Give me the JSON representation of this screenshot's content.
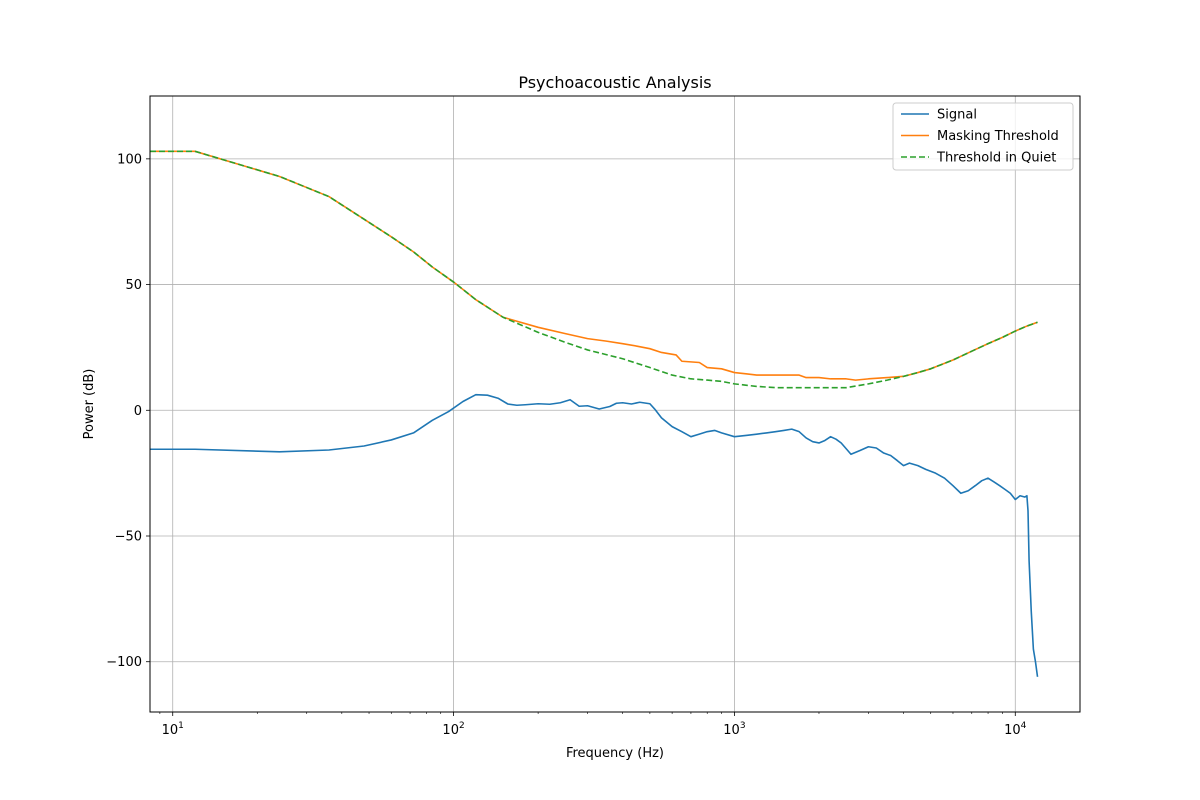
{
  "chart_data": {
    "type": "line",
    "title": "Psychoacoustic Analysis",
    "xlabel": "Frequency (Hz)",
    "ylabel": "Power (dB)",
    "xscale": "log",
    "xlim": [
      8.3,
      17000
    ],
    "ylim": [
      -120,
      125
    ],
    "grid": true,
    "legend_placement": "top-right",
    "x_ticks": [
      {
        "value": 10,
        "base": "10",
        "exp": "1"
      },
      {
        "value": 100,
        "base": "10",
        "exp": "2"
      },
      {
        "value": 1000,
        "base": "10",
        "exp": "3"
      },
      {
        "value": 10000,
        "base": "10",
        "exp": "4"
      }
    ],
    "y_ticks": [
      {
        "value": -100,
        "label": "−100"
      },
      {
        "value": -50,
        "label": "−50"
      },
      {
        "value": 0,
        "label": "0"
      },
      {
        "value": 50,
        "label": "50"
      },
      {
        "value": 100,
        "label": "100"
      }
    ],
    "series": [
      {
        "name": "Signal",
        "color": "#1f77b4",
        "style": "solid",
        "x": [
          8.3,
          12,
          24,
          36,
          48,
          60,
          72,
          84,
          96,
          108,
          120,
          132,
          144,
          156,
          168,
          180,
          200,
          220,
          240,
          260,
          280,
          300,
          330,
          360,
          380,
          400,
          430,
          460,
          500,
          520,
          550,
          600,
          650,
          700,
          750,
          800,
          850,
          900,
          1000,
          1100,
          1200,
          1300,
          1400,
          1500,
          1600,
          1700,
          1800,
          1900,
          2000,
          2100,
          2200,
          2300,
          2400,
          2600,
          2800,
          3000,
          3200,
          3400,
          3600,
          3800,
          4000,
          4200,
          4500,
          4800,
          5200,
          5600,
          6000,
          6400,
          6800,
          7200,
          7600,
          8000,
          8400,
          8800,
          9200,
          9600,
          10000,
          10400,
          10800,
          11000,
          11100,
          11200,
          11400,
          11600,
          11800,
          12000
        ],
        "y": [
          -15.5,
          -15.5,
          -16.5,
          -15.8,
          -14.2,
          -11.8,
          -9.0,
          -4.0,
          -0.5,
          3.5,
          6.2,
          6.0,
          4.8,
          2.5,
          2.0,
          2.2,
          2.6,
          2.4,
          3.0,
          4.2,
          1.6,
          1.8,
          0.5,
          1.5,
          2.8,
          3.0,
          2.5,
          3.2,
          2.6,
          0.5,
          -3.0,
          -6.5,
          -8.5,
          -10.5,
          -9.5,
          -8.5,
          -8.0,
          -9.0,
          -10.5,
          -10.0,
          -9.5,
          -9.0,
          -8.5,
          -8.0,
          -7.5,
          -8.5,
          -11.0,
          -12.5,
          -13.0,
          -12.0,
          -10.5,
          -11.5,
          -13.0,
          -17.5,
          -16.0,
          -14.5,
          -15.0,
          -17.0,
          -18.0,
          -20.0,
          -22.0,
          -21.0,
          -22.0,
          -23.5,
          -25.0,
          -27.0,
          -30.0,
          -33.0,
          -32.0,
          -30.0,
          -28.0,
          -27.0,
          -28.5,
          -30.0,
          -31.5,
          -33.0,
          -35.5,
          -34.0,
          -34.5,
          -34.0,
          -40.0,
          -60.0,
          -80.0,
          -95.0,
          -100.0,
          -106.0
        ]
      },
      {
        "name": "Masking Threshold",
        "color": "#ff7f0e",
        "style": "solid",
        "x": [
          8.3,
          12,
          24,
          36,
          48,
          60,
          72,
          84,
          100,
          120,
          150,
          200,
          250,
          300,
          350,
          400,
          450,
          500,
          550,
          620,
          650,
          750,
          800,
          900,
          1000,
          1100,
          1200,
          1300,
          1500,
          1700,
          1800,
          2000,
          2200,
          2500,
          2700,
          3000,
          3500,
          4000,
          4500,
          5000,
          6000,
          7000,
          8000,
          9000,
          10000,
          11000,
          12000
        ],
        "y": [
          103,
          103,
          93,
          85,
          76,
          69,
          63,
          57,
          51,
          44,
          37,
          33,
          30.5,
          28.5,
          27.5,
          26.5,
          25.5,
          24.5,
          23.0,
          22.0,
          19.5,
          19.0,
          17.0,
          16.5,
          15.0,
          14.5,
          14.0,
          14.0,
          14.0,
          14.0,
          13.0,
          13.0,
          12.5,
          12.5,
          12.0,
          12.5,
          13.0,
          13.5,
          15.0,
          16.5,
          20.0,
          23.5,
          26.5,
          29.0,
          31.5,
          33.5,
          35.0
        ]
      },
      {
        "name": "Threshold in Quiet",
        "color": "#2ca02c",
        "style": "dashed",
        "x": [
          8.3,
          12,
          24,
          36,
          48,
          60,
          72,
          84,
          100,
          120,
          150,
          200,
          250,
          300,
          400,
          500,
          600,
          700,
          800,
          900,
          1000,
          1200,
          1400,
          1600,
          2000,
          2500,
          3000,
          3500,
          4000,
          4500,
          5000,
          6000,
          7000,
          8000,
          9000,
          10000,
          11000,
          12000
        ],
        "y": [
          103,
          103,
          93,
          85,
          76,
          69,
          63,
          57,
          51,
          44,
          37,
          31,
          27,
          24,
          20.5,
          17,
          14,
          12.5,
          12,
          11.5,
          10.5,
          9.5,
          9.0,
          9.0,
          9.0,
          9.0,
          10.5,
          12.0,
          13.5,
          15.0,
          16.5,
          20.0,
          23.5,
          26.5,
          29.0,
          31.5,
          33.5,
          35.0
        ]
      }
    ]
  }
}
